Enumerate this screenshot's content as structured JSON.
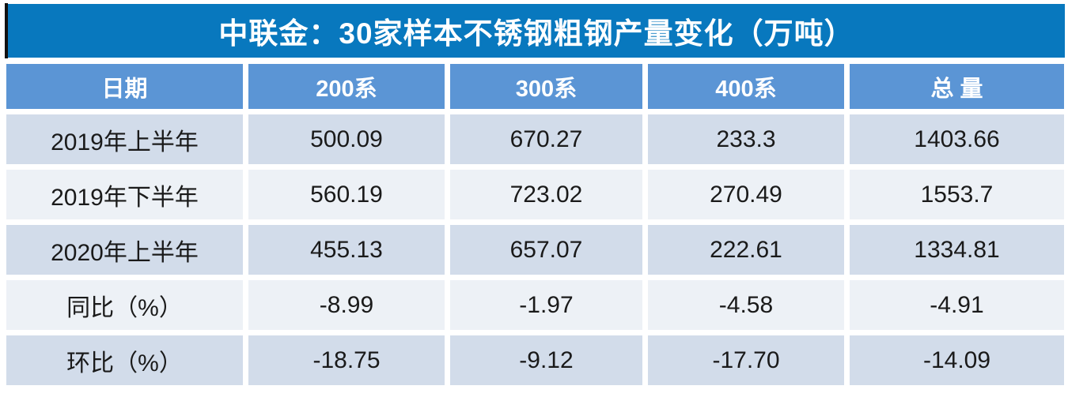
{
  "title": "中联金：30家样本不锈钢粗钢产量变化（万吨）",
  "chart_data": {
    "type": "table",
    "title": "中联金：30家样本不锈钢粗钢产量变化（万吨）",
    "columns": [
      "日期",
      "200系",
      "300系",
      "400系",
      "总 量"
    ],
    "rows": [
      {
        "label": "2019年上半年",
        "values": [
          "500.09",
          "670.27",
          "233.3",
          "1403.66"
        ]
      },
      {
        "label": "2019年下半年",
        "values": [
          "560.19",
          "723.02",
          "270.49",
          "1553.7"
        ]
      },
      {
        "label": "2020年上半年",
        "values": [
          "455.13",
          "657.07",
          "222.61",
          "1334.81"
        ]
      },
      {
        "label": "同比（%）",
        "values": [
          "-8.99",
          "-1.97",
          "-4.58",
          "-4.91"
        ]
      },
      {
        "label": "环比（%）",
        "values": [
          "-18.75",
          "-9.12",
          "-17.70",
          "-14.09"
        ]
      }
    ]
  },
  "colors": {
    "title_bar": "#0878be",
    "header_row": "#5b95d5",
    "row_odd": "#d2dcea",
    "row_even": "#edf1f6",
    "title_text": "#ffffff",
    "data_text": "#1a1a1a",
    "accent_bar": "#111111"
  }
}
